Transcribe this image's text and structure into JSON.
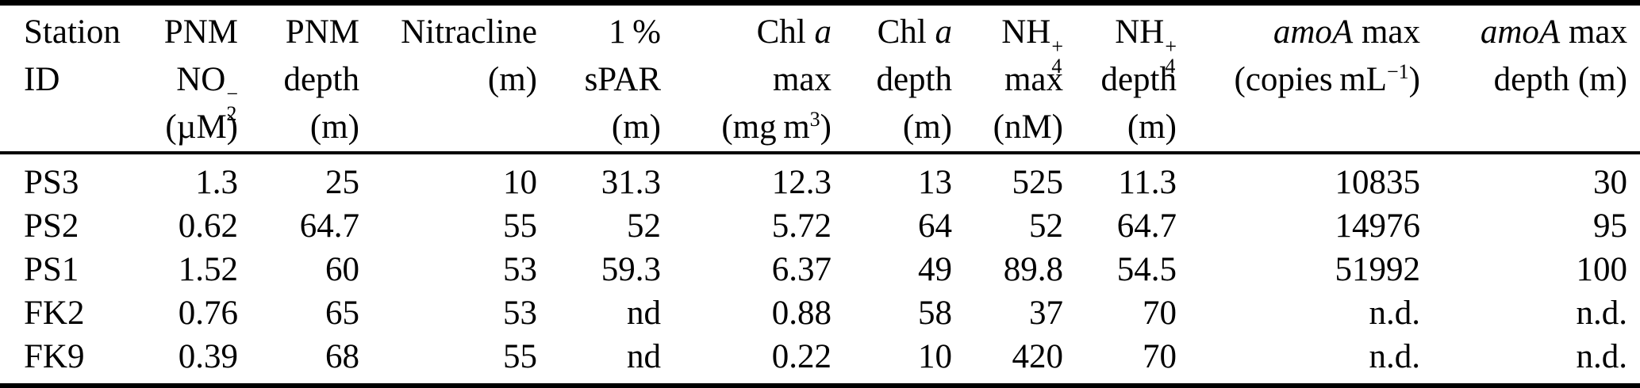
{
  "table": {
    "columns": [
      {
        "key": "station-id",
        "align": "left",
        "lines": [
          [
            {
              "t": "Station"
            }
          ],
          [
            {
              "t": "ID"
            }
          ],
          []
        ]
      },
      {
        "key": "pnm-no2",
        "align": "right",
        "lines": [
          [
            {
              "t": "PNM"
            }
          ],
          [
            {
              "t": "NO"
            },
            {
              "stack": [
                "−",
                "2"
              ]
            }
          ],
          [
            {
              "t": "(µM)"
            }
          ]
        ]
      },
      {
        "key": "pnm-depth",
        "align": "right",
        "lines": [
          [
            {
              "t": "PNM"
            }
          ],
          [
            {
              "t": "depth"
            }
          ],
          [
            {
              "t": "(m)"
            }
          ]
        ]
      },
      {
        "key": "nitracline",
        "align": "right",
        "lines": [
          [
            {
              "t": "Nitracline"
            }
          ],
          [
            {
              "t": "(m)"
            }
          ],
          []
        ]
      },
      {
        "key": "spar",
        "align": "right",
        "lines": [
          [
            {
              "t": "1 %"
            }
          ],
          [
            {
              "t": "sPAR"
            }
          ],
          [
            {
              "t": "(m)"
            }
          ]
        ]
      },
      {
        "key": "chla-max",
        "align": "right",
        "lines": [
          [
            {
              "t": "Chl "
            },
            {
              "i": "a"
            }
          ],
          [
            {
              "t": "max"
            }
          ],
          [
            {
              "t": "(mg m"
            },
            {
              "sup": "3"
            },
            {
              "t": ")"
            }
          ]
        ]
      },
      {
        "key": "chla-depth",
        "align": "right",
        "lines": [
          [
            {
              "t": "Chl "
            },
            {
              "i": "a"
            }
          ],
          [
            {
              "t": "depth"
            }
          ],
          [
            {
              "t": "(m)"
            }
          ]
        ]
      },
      {
        "key": "nh4-max",
        "align": "right",
        "lines": [
          [
            {
              "t": "NH"
            },
            {
              "stack": [
                "+",
                "4"
              ]
            }
          ],
          [
            {
              "t": "max"
            }
          ],
          [
            {
              "t": "(nM)"
            }
          ]
        ]
      },
      {
        "key": "nh4-depth",
        "align": "right",
        "lines": [
          [
            {
              "t": "NH"
            },
            {
              "stack": [
                "+",
                "4"
              ]
            }
          ],
          [
            {
              "t": "depth"
            }
          ],
          [
            {
              "t": "(m)"
            }
          ]
        ]
      },
      {
        "key": "amoa-max",
        "align": "right",
        "lines": [
          [
            {
              "i": "amoA"
            },
            {
              "t": " max"
            }
          ],
          [
            {
              "t": "(copies mL"
            },
            {
              "sup": "−1"
            },
            {
              "t": ")"
            }
          ],
          []
        ]
      },
      {
        "key": "amoa-max-depth",
        "align": "right",
        "lines": [
          [
            {
              "i": "amoA"
            },
            {
              "t": " max"
            }
          ],
          [
            {
              "t": "depth (m)"
            }
          ],
          []
        ]
      }
    ],
    "rows": [
      [
        "PS3",
        "1.3",
        "25",
        "10",
        "31.3",
        "12.3",
        "13",
        "525",
        "11.3",
        "10835",
        "30"
      ],
      [
        "PS2",
        "0.62",
        "64.7",
        "55",
        "52",
        "5.72",
        "64",
        "52",
        "64.7",
        "14976",
        "95"
      ],
      [
        "PS1",
        "1.52",
        "60",
        "53",
        "59.3",
        "6.37",
        "49",
        "89.8",
        "54.5",
        "51992",
        "100"
      ],
      [
        "FK2",
        "0.76",
        "65",
        "53",
        "nd",
        "0.88",
        "58",
        "37",
        "70",
        "n.d.",
        "n.d."
      ],
      [
        "FK9",
        "0.39",
        "68",
        "55",
        "nd",
        "0.22",
        "10",
        "420",
        "70",
        "n.d.",
        "n.d."
      ]
    ]
  },
  "chart_data": {
    "type": "table",
    "headers": [
      "Station ID",
      "PNM NO2− (µM)",
      "PNM depth (m)",
      "Nitracline (m)",
      "1 % sPAR (m)",
      "Chl a max (mg m3)",
      "Chl a depth (m)",
      "NH4+ max (nM)",
      "NH4+ depth (m)",
      "amoA max (copies mL−1)",
      "amoA max depth (m)"
    ],
    "rows": [
      [
        "PS3",
        "1.3",
        "25",
        "10",
        "31.3",
        "12.3",
        "13",
        "525",
        "11.3",
        "10835",
        "30"
      ],
      [
        "PS2",
        "0.62",
        "64.7",
        "55",
        "52",
        "5.72",
        "64",
        "52",
        "64.7",
        "14976",
        "95"
      ],
      [
        "PS1",
        "1.52",
        "60",
        "53",
        "59.3",
        "6.37",
        "49",
        "89.8",
        "54.5",
        "51992",
        "100"
      ],
      [
        "FK2",
        "0.76",
        "65",
        "53",
        "nd",
        "0.88",
        "58",
        "37",
        "70",
        "n.d.",
        "n.d."
      ],
      [
        "FK9",
        "0.39",
        "68",
        "55",
        "nd",
        "0.22",
        "10",
        "420",
        "70",
        "n.d.",
        "n.d."
      ]
    ]
  },
  "colors": {
    "text": "#000000",
    "background": "#ffffff",
    "rule": "#000000"
  }
}
